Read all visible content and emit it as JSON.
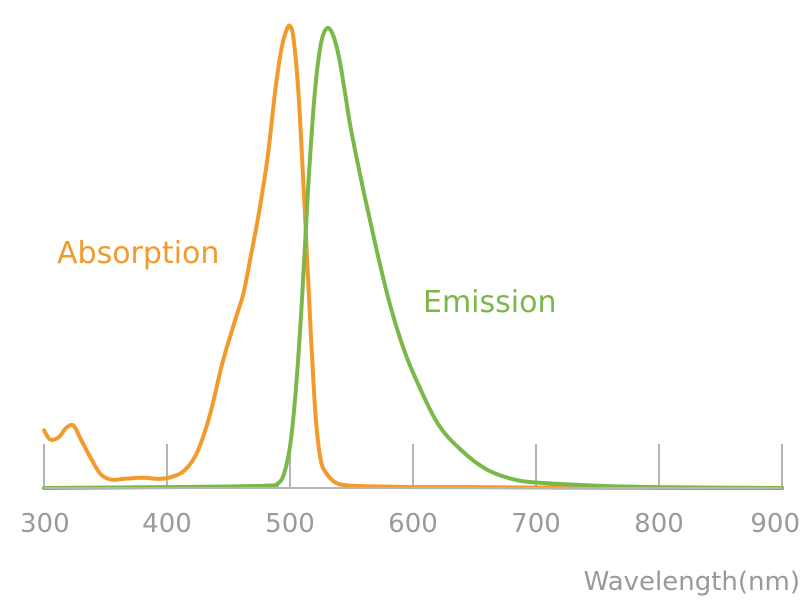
{
  "chart_data": {
    "type": "line",
    "title": "",
    "xlabel": "Wavelength(nm)",
    "ylabel": "",
    "xlim": [
      300,
      900
    ],
    "ylim": [
      0,
      1
    ],
    "x_ticks": [
      "300",
      "400",
      "500",
      "600",
      "700",
      "800",
      "900"
    ],
    "grid": false,
    "series": [
      {
        "name": "Absorption",
        "color": "#f39a2c",
        "x": [
          300,
          305,
          312,
          318,
          324,
          330,
          338,
          346,
          355,
          365,
          380,
          395,
          405,
          415,
          425,
          435,
          445,
          455,
          462,
          468,
          475,
          482,
          488,
          493,
          497,
          500,
          503,
          507,
          512,
          517,
          521,
          525,
          530,
          537,
          545,
          560,
          600,
          650,
          700,
          800,
          900
        ],
        "y": [
          0.125,
          0.105,
          0.11,
          0.13,
          0.135,
          0.105,
          0.065,
          0.03,
          0.018,
          0.02,
          0.022,
          0.02,
          0.025,
          0.04,
          0.08,
          0.16,
          0.27,
          0.36,
          0.42,
          0.5,
          0.6,
          0.72,
          0.86,
          0.95,
          0.99,
          1.0,
          0.97,
          0.85,
          0.6,
          0.33,
          0.15,
          0.06,
          0.03,
          0.012,
          0.006,
          0.004,
          0.002,
          0.002,
          0.001,
          0.0,
          0.0
        ]
      },
      {
        "name": "Emission",
        "color": "#7ab84a",
        "x": [
          300,
          400,
          480,
          490,
          495,
          500,
          505,
          510,
          515,
          520,
          525,
          530,
          535,
          540,
          545,
          550,
          560,
          570,
          580,
          590,
          600,
          620,
          640,
          660,
          680,
          700,
          750,
          800,
          900
        ],
        "y": [
          0.0,
          0.002,
          0.005,
          0.01,
          0.03,
          0.09,
          0.22,
          0.42,
          0.66,
          0.85,
          0.96,
          0.995,
          0.98,
          0.93,
          0.85,
          0.77,
          0.64,
          0.52,
          0.41,
          0.32,
          0.25,
          0.14,
          0.08,
          0.04,
          0.02,
          0.012,
          0.005,
          0.002,
          0.0
        ]
      }
    ]
  }
}
